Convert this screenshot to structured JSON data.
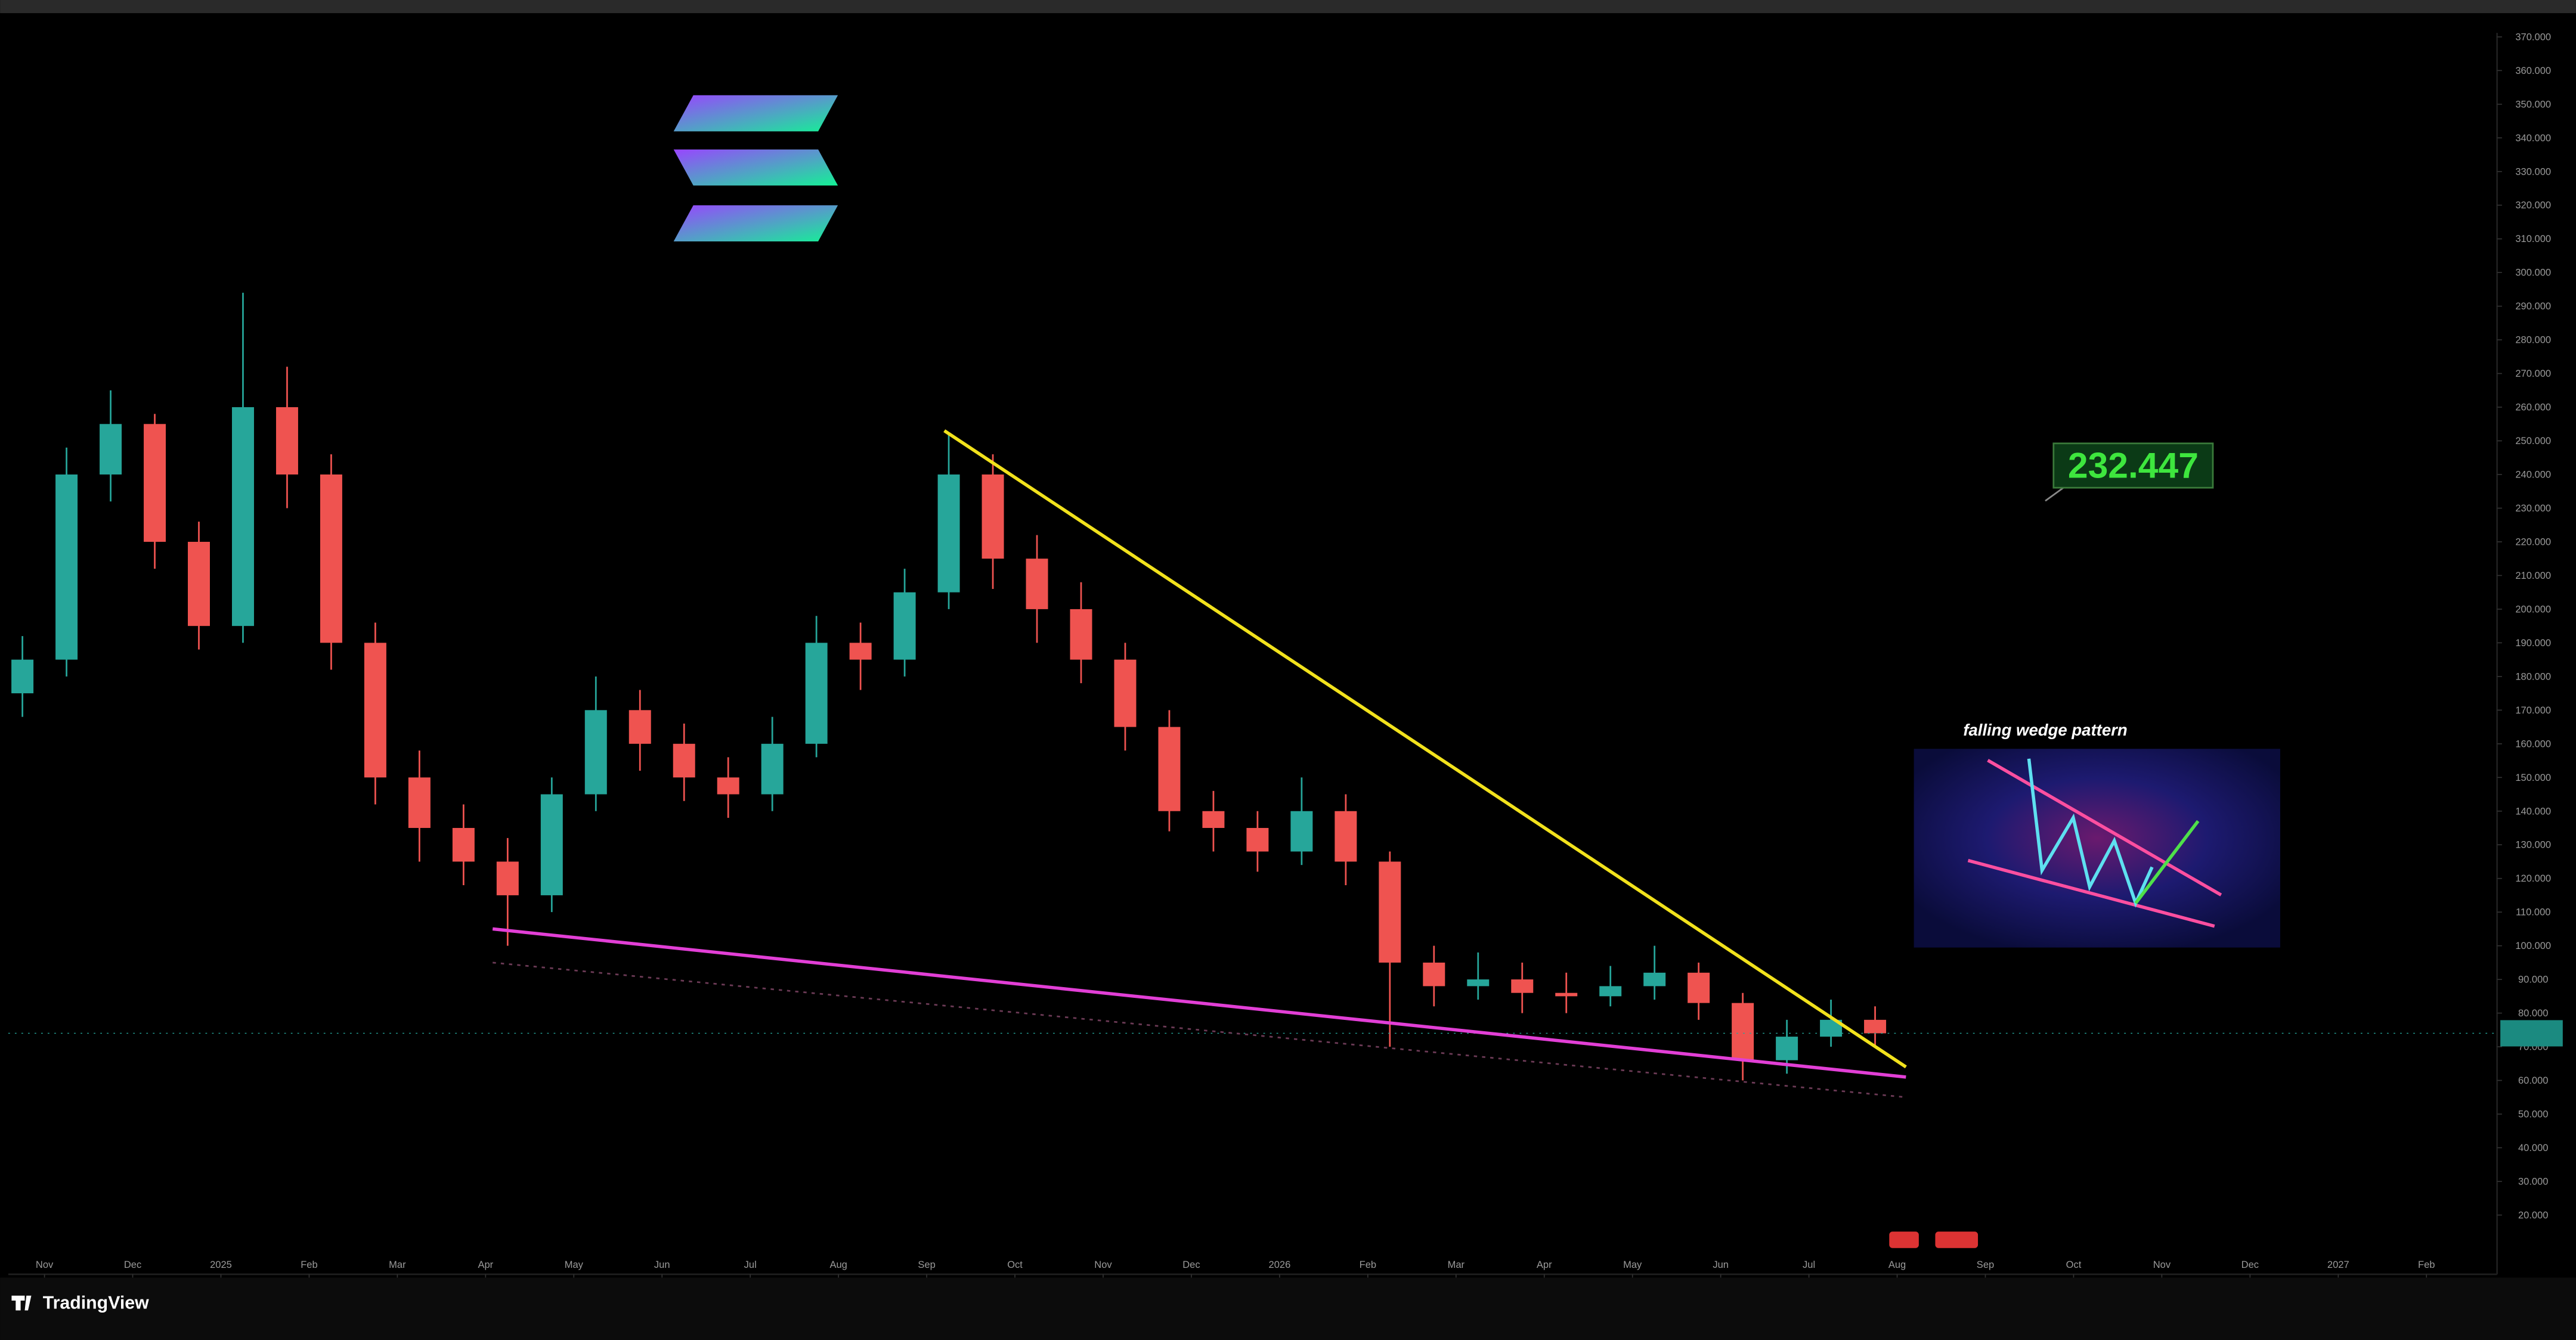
{
  "chart_data": {
    "type": "candlestick",
    "annotation": "232.447",
    "pattern_label": "falling wedge pattern",
    "brand": "TradingView",
    "up_color": "#26a69a",
    "down_color": "#ef5350",
    "xlim": [
      -0.41,
      27.8
    ],
    "xticks": [
      {
        "value": 0,
        "label": "Nov"
      },
      {
        "value": 1,
        "label": "Dec"
      },
      {
        "value": 2,
        "label": "2025"
      },
      {
        "value": 3,
        "label": "Feb"
      },
      {
        "value": 4,
        "label": "Mar"
      },
      {
        "value": 5,
        "label": "Apr"
      },
      {
        "value": 6,
        "label": "May"
      },
      {
        "value": 7,
        "label": "Jun"
      },
      {
        "value": 8,
        "label": "Jul"
      },
      {
        "value": 9,
        "label": "Aug"
      },
      {
        "value": 10,
        "label": "Sep"
      },
      {
        "value": 11,
        "label": "Oct"
      },
      {
        "value": 12,
        "label": "Nov"
      },
      {
        "value": 13,
        "label": "Dec"
      },
      {
        "value": 14,
        "label": "2026"
      },
      {
        "value": 15,
        "label": "Feb"
      },
      {
        "value": 16,
        "label": "Mar"
      },
      {
        "value": 17,
        "label": "Apr"
      },
      {
        "value": 18,
        "label": "May"
      },
      {
        "value": 19,
        "label": "Jun"
      },
      {
        "value": 20,
        "label": "Jul"
      },
      {
        "value": 21,
        "label": "Aug"
      },
      {
        "value": 22,
        "label": "Sep"
      },
      {
        "value": 23,
        "label": "Oct"
      },
      {
        "value": 24,
        "label": "Nov"
      },
      {
        "value": 25,
        "label": "Dec"
      },
      {
        "value": 26,
        "label": "2027"
      },
      {
        "value": 27,
        "label": "Feb"
      }
    ],
    "ylim": [
      2.4,
      371.2
    ],
    "yticks": [
      {
        "value": 20,
        "label": "20.000"
      },
      {
        "value": 30,
        "label": "30.000"
      },
      {
        "value": 40,
        "label": "40.000"
      },
      {
        "value": 50,
        "label": "50.000"
      },
      {
        "value": 60,
        "label": "60.000"
      },
      {
        "value": 70,
        "label": "70.000"
      },
      {
        "value": 80,
        "label": "80.000"
      },
      {
        "value": 90,
        "label": "90.000"
      },
      {
        "value": 100,
        "label": "100.000"
      },
      {
        "value": 110,
        "label": "110.000"
      },
      {
        "value": 120,
        "label": "120.000"
      },
      {
        "value": 130,
        "label": "130.000"
      },
      {
        "value": 140,
        "label": "140.000"
      },
      {
        "value": 150,
        "label": "150.000"
      },
      {
        "value": 160,
        "label": "160.000"
      },
      {
        "value": 170,
        "label": "170.000"
      },
      {
        "value": 180,
        "label": "180.000"
      },
      {
        "value": 190,
        "label": "190.000"
      },
      {
        "value": 200,
        "label": "200.000"
      },
      {
        "value": 210,
        "label": "210.000"
      },
      {
        "value": 220,
        "label": "220.000"
      },
      {
        "value": 230,
        "label": "230.000"
      },
      {
        "value": 240,
        "label": "240.000"
      },
      {
        "value": 250,
        "label": "250.000"
      },
      {
        "value": 260,
        "label": "260.000"
      },
      {
        "value": 270,
        "label": "270.000"
      },
      {
        "value": 280,
        "label": "280.000"
      },
      {
        "value": 290,
        "label": "290.000"
      },
      {
        "value": 300,
        "label": "300.000"
      },
      {
        "value": 310,
        "label": "310.000"
      },
      {
        "value": 320,
        "label": "320.000"
      },
      {
        "value": 330,
        "label": "330.000"
      },
      {
        "value": 340,
        "label": "340.000"
      },
      {
        "value": 350,
        "label": "350.000"
      },
      {
        "value": 360,
        "label": "360.000"
      },
      {
        "value": 370,
        "label": "370.000"
      }
    ],
    "candles": {
      "x": [
        -0.25,
        0.25,
        0.75,
        1.25,
        1.75,
        2.25,
        2.75,
        3.25,
        3.75,
        4.25,
        4.75,
        5.25,
        5.75,
        6.25,
        6.75,
        7.25,
        7.75,
        8.25,
        8.75,
        9.25,
        9.75,
        10.25,
        10.75,
        11.25,
        11.75,
        12.25,
        12.75,
        13.25,
        13.75,
        14.25,
        14.75,
        15.25,
        15.75,
        16.25,
        16.75,
        17.25,
        17.75,
        18.25,
        18.75,
        19.25,
        19.75,
        20.25,
        20.75
      ],
      "open": [
        175,
        185,
        240,
        255,
        220,
        195,
        260,
        240,
        190,
        150,
        135,
        125,
        115,
        145,
        170,
        160,
        150,
        145,
        160,
        190,
        185,
        205,
        240,
        215,
        200,
        185,
        165,
        140,
        135,
        128,
        140,
        125,
        95,
        88,
        90,
        86,
        85,
        88,
        92,
        83,
        66,
        73,
        78
      ],
      "high": [
        192,
        248,
        265,
        258,
        226,
        294,
        272,
        246,
        196,
        158,
        142,
        132,
        150,
        180,
        176,
        166,
        156,
        168,
        198,
        196,
        212,
        252,
        246,
        222,
        208,
        190,
        170,
        146,
        140,
        150,
        145,
        128,
        100,
        98,
        95,
        92,
        94,
        100,
        95,
        86,
        78,
        84,
        82
      ],
      "low": [
        168,
        180,
        232,
        212,
        188,
        190,
        230,
        182,
        142,
        125,
        118,
        100,
        110,
        140,
        152,
        143,
        138,
        140,
        156,
        176,
        180,
        200,
        206,
        190,
        178,
        158,
        134,
        128,
        122,
        124,
        118,
        70,
        82,
        84,
        80,
        80,
        82,
        84,
        78,
        60,
        62,
        70,
        70
      ],
      "close": [
        185,
        240,
        255,
        220,
        195,
        260,
        240,
        190,
        150,
        135,
        125,
        115,
        145,
        170,
        160,
        150,
        145,
        160,
        190,
        185,
        205,
        240,
        215,
        200,
        185,
        165,
        140,
        135,
        128,
        140,
        125,
        95,
        88,
        90,
        86,
        85,
        88,
        92,
        83,
        66,
        73,
        78,
        74
      ]
    },
    "trendlines": [
      {
        "color": "#f2e21c",
        "x": [
          10.2,
          21.1
        ],
        "y": [
          253,
          64
        ]
      },
      {
        "color": "#e23fd6",
        "x": [
          5.08,
          21.1
        ],
        "y": [
          105,
          61
        ]
      },
      {
        "color": "#6b3a55",
        "x": [
          5.08,
          21.1
        ],
        "y": [
          95,
          55
        ]
      }
    ]
  }
}
